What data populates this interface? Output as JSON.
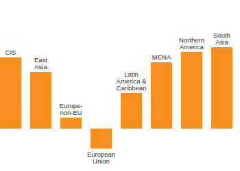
{
  "chart_data": {
    "type": "bar",
    "categories": [
      "CIS",
      "East Asia",
      "Europe-non-EU",
      "European Union",
      "Latin America & Caribbean",
      "MENA",
      "Northern America",
      "South Asia"
    ],
    "values": [
      104,
      83,
      16,
      -29,
      52,
      97,
      112,
      119
    ],
    "color": "#f7901e",
    "ylim": [
      -62,
      188
    ],
    "tick_labels": false,
    "grid": false
  }
}
